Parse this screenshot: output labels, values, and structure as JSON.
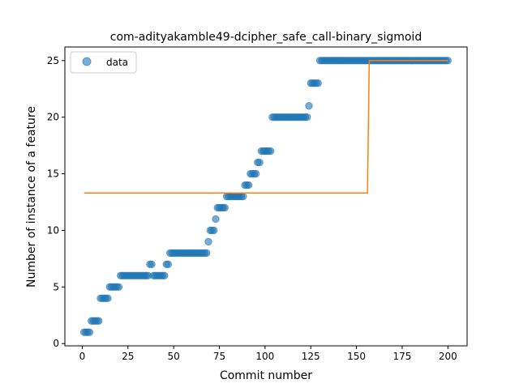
{
  "chart_data": {
    "type": "scatter",
    "title": "com-adityakamble49-dcipher_safe_call-binary_sigmoid",
    "xlabel": "Commit number",
    "ylabel": "Number of instance of a feature",
    "xlim": [
      -9.5,
      210.5
    ],
    "ylim": [
      -0.2,
      26.2
    ],
    "xticks": [
      0,
      25,
      50,
      75,
      100,
      125,
      150,
      175,
      200
    ],
    "yticks": [
      0,
      5,
      10,
      15,
      20,
      25
    ],
    "legend": {
      "position": "top-left",
      "entries": [
        "data"
      ]
    },
    "colors": {
      "data": "#1f77b4",
      "fit": "#ff7f0e"
    },
    "series": [
      {
        "name": "data",
        "style": "markers",
        "points": [
          [
            1,
            1
          ],
          [
            2,
            1
          ],
          [
            3,
            1
          ],
          [
            4,
            1
          ],
          [
            5,
            2
          ],
          [
            6,
            2
          ],
          [
            7,
            2
          ],
          [
            8,
            2
          ],
          [
            9,
            2
          ],
          [
            10,
            4
          ],
          [
            11,
            4
          ],
          [
            12,
            4
          ],
          [
            13,
            4
          ],
          [
            14,
            4
          ],
          [
            15,
            5
          ],
          [
            16,
            5
          ],
          [
            17,
            5
          ],
          [
            18,
            5
          ],
          [
            19,
            5
          ],
          [
            20,
            5
          ],
          [
            21,
            6
          ],
          [
            22,
            6
          ],
          [
            23,
            6
          ],
          [
            24,
            6
          ],
          [
            25,
            6
          ],
          [
            26,
            6
          ],
          [
            27,
            6
          ],
          [
            28,
            6
          ],
          [
            29,
            6
          ],
          [
            30,
            6
          ],
          [
            31,
            6
          ],
          [
            32,
            6
          ],
          [
            33,
            6
          ],
          [
            34,
            6
          ],
          [
            35,
            6
          ],
          [
            36,
            6
          ],
          [
            37,
            7
          ],
          [
            38,
            7
          ],
          [
            39,
            6
          ],
          [
            40,
            6
          ],
          [
            41,
            6
          ],
          [
            42,
            6
          ],
          [
            43,
            6
          ],
          [
            44,
            6
          ],
          [
            45,
            6
          ],
          [
            46,
            7
          ],
          [
            47,
            7
          ],
          [
            48,
            8
          ],
          [
            49,
            8
          ],
          [
            50,
            8
          ],
          [
            51,
            8
          ],
          [
            52,
            8
          ],
          [
            53,
            8
          ],
          [
            54,
            8
          ],
          [
            55,
            8
          ],
          [
            56,
            8
          ],
          [
            57,
            8
          ],
          [
            58,
            8
          ],
          [
            59,
            8
          ],
          [
            60,
            8
          ],
          [
            61,
            8
          ],
          [
            62,
            8
          ],
          [
            63,
            8
          ],
          [
            64,
            8
          ],
          [
            65,
            8
          ],
          [
            66,
            8
          ],
          [
            67,
            8
          ],
          [
            68,
            8
          ],
          [
            69,
            9
          ],
          [
            70,
            10
          ],
          [
            71,
            10
          ],
          [
            72,
            10
          ],
          [
            73,
            11
          ],
          [
            74,
            12
          ],
          [
            75,
            12
          ],
          [
            76,
            12
          ],
          [
            77,
            12
          ],
          [
            78,
            12
          ],
          [
            79,
            13
          ],
          [
            80,
            13
          ],
          [
            81,
            13
          ],
          [
            82,
            13
          ],
          [
            83,
            13
          ],
          [
            84,
            13
          ],
          [
            85,
            13
          ],
          [
            86,
            13
          ],
          [
            87,
            13
          ],
          [
            88,
            13
          ],
          [
            89,
            14
          ],
          [
            90,
            14
          ],
          [
            91,
            14
          ],
          [
            92,
            15
          ],
          [
            93,
            15
          ],
          [
            94,
            15
          ],
          [
            95,
            15
          ],
          [
            96,
            16
          ],
          [
            97,
            16
          ],
          [
            98,
            17
          ],
          [
            99,
            17
          ],
          [
            100,
            17
          ],
          [
            101,
            17
          ],
          [
            102,
            17
          ],
          [
            103,
            17
          ],
          [
            104,
            20
          ],
          [
            105,
            20
          ],
          [
            106,
            20
          ],
          [
            107,
            20
          ],
          [
            108,
            20
          ],
          [
            109,
            20
          ],
          [
            110,
            20
          ],
          [
            111,
            20
          ],
          [
            112,
            20
          ],
          [
            113,
            20
          ],
          [
            114,
            20
          ],
          [
            115,
            20
          ],
          [
            116,
            20
          ],
          [
            117,
            20
          ],
          [
            118,
            20
          ],
          [
            119,
            20
          ],
          [
            120,
            20
          ],
          [
            121,
            20
          ],
          [
            122,
            20
          ],
          [
            123,
            20
          ],
          [
            124,
            21
          ],
          [
            125,
            23
          ],
          [
            126,
            23
          ],
          [
            127,
            23
          ],
          [
            128,
            23
          ],
          [
            129,
            23
          ],
          [
            130,
            25
          ],
          [
            131,
            25
          ],
          [
            132,
            25
          ],
          [
            133,
            25
          ],
          [
            134,
            25
          ],
          [
            135,
            25
          ],
          [
            136,
            25
          ],
          [
            137,
            25
          ],
          [
            138,
            25
          ],
          [
            139,
            25
          ],
          [
            140,
            25
          ],
          [
            141,
            25
          ],
          [
            142,
            25
          ],
          [
            143,
            25
          ],
          [
            144,
            25
          ],
          [
            145,
            25
          ],
          [
            146,
            25
          ],
          [
            147,
            25
          ],
          [
            148,
            25
          ],
          [
            149,
            25
          ],
          [
            150,
            25
          ],
          [
            151,
            25
          ],
          [
            152,
            25
          ],
          [
            153,
            25
          ],
          [
            154,
            25
          ],
          [
            155,
            25
          ],
          [
            156,
            25
          ],
          [
            157,
            25
          ],
          [
            158,
            25
          ],
          [
            159,
            25
          ],
          [
            160,
            25
          ],
          [
            161,
            25
          ],
          [
            162,
            25
          ],
          [
            163,
            25
          ],
          [
            164,
            25
          ],
          [
            165,
            25
          ],
          [
            166,
            25
          ],
          [
            167,
            25
          ],
          [
            168,
            25
          ],
          [
            169,
            25
          ],
          [
            170,
            25
          ],
          [
            171,
            25
          ],
          [
            172,
            25
          ],
          [
            173,
            25
          ],
          [
            174,
            25
          ],
          [
            175,
            25
          ],
          [
            176,
            25
          ],
          [
            177,
            25
          ],
          [
            178,
            25
          ],
          [
            179,
            25
          ],
          [
            180,
            25
          ],
          [
            181,
            25
          ],
          [
            182,
            25
          ],
          [
            183,
            25
          ],
          [
            184,
            25
          ],
          [
            185,
            25
          ],
          [
            186,
            25
          ],
          [
            187,
            25
          ],
          [
            188,
            25
          ],
          [
            189,
            25
          ],
          [
            190,
            25
          ],
          [
            191,
            25
          ],
          [
            192,
            25
          ],
          [
            193,
            25
          ],
          [
            194,
            25
          ],
          [
            195,
            25
          ],
          [
            196,
            25
          ],
          [
            197,
            25
          ],
          [
            198,
            25
          ],
          [
            199,
            25
          ],
          [
            200,
            25
          ]
        ]
      },
      {
        "style": "line",
        "points": [
          [
            1,
            13.3
          ],
          [
            156,
            13.3
          ],
          [
            157,
            25
          ],
          [
            200,
            25
          ]
        ]
      }
    ]
  }
}
